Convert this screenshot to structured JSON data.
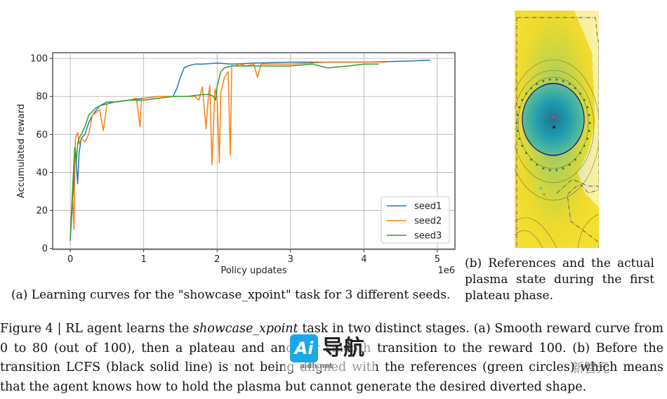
{
  "chart_data": {
    "type": "line",
    "xlabel": "Policy updates",
    "ylabel": "Accumulated reward",
    "x_multiplier_label": "1e6",
    "xlim": [
      -0.24,
      5.24
    ],
    "ylim": [
      -0.5,
      103
    ],
    "xticks": [
      0,
      1,
      2,
      3,
      4,
      5
    ],
    "yticks": [
      0,
      20,
      40,
      60,
      80,
      100
    ],
    "grid": true,
    "legend_position": "lower-right",
    "series": [
      {
        "name": "seed1",
        "color": "#1f77b4",
        "x": [
          0.0,
          0.04,
          0.07,
          0.1,
          0.12,
          0.15,
          0.2,
          0.25,
          0.3,
          0.4,
          0.5,
          0.6,
          0.8,
          1.0,
          1.2,
          1.4,
          1.45,
          1.5,
          1.55,
          1.6,
          1.7,
          1.8,
          2.0,
          2.2,
          2.5,
          3.0,
          3.5,
          4.0,
          4.5,
          4.9
        ],
        "y": [
          5,
          30,
          52,
          34,
          50,
          58,
          60,
          66,
          70,
          75,
          77,
          77,
          78,
          79,
          80,
          80,
          84,
          90,
          95,
          96,
          97,
          97,
          97.5,
          97,
          97.5,
          98,
          98,
          98,
          98.5,
          99
        ]
      },
      {
        "name": "seed2",
        "color": "#ff7f0e",
        "x": [
          0.0,
          0.03,
          0.05,
          0.07,
          0.1,
          0.12,
          0.15,
          0.2,
          0.25,
          0.3,
          0.4,
          0.45,
          0.5,
          0.6,
          0.8,
          0.9,
          0.95,
          0.97,
          1.0,
          1.2,
          1.4,
          1.6,
          1.7,
          1.75,
          1.8,
          1.85,
          1.88,
          1.9,
          1.93,
          1.97,
          2.0,
          2.03,
          2.05,
          2.1,
          2.15,
          2.18,
          2.2,
          2.23,
          2.25,
          2.3,
          2.4,
          2.5,
          2.55,
          2.6,
          2.7,
          3.0,
          3.5,
          4.0,
          4.3
        ],
        "y": [
          5,
          30,
          10,
          58,
          61,
          55,
          58,
          56,
          60,
          70,
          73,
          62,
          76,
          77,
          78,
          79,
          64,
          79,
          79,
          80,
          80,
          80,
          80,
          78,
          85,
          63,
          80,
          86,
          44,
          84,
          80,
          45,
          82,
          90,
          93,
          49,
          96,
          96,
          96,
          97,
          96,
          97,
          90,
          97,
          97,
          97,
          98,
          98,
          98
        ]
      },
      {
        "name": "seed3",
        "color": "#2ca02c",
        "x": [
          0.0,
          0.03,
          0.06,
          0.08,
          0.1,
          0.12,
          0.15,
          0.2,
          0.25,
          0.3,
          0.35,
          0.4,
          0.5,
          0.6,
          0.8,
          1.0,
          1.2,
          1.4,
          1.6,
          1.8,
          1.9,
          1.95,
          1.98,
          2.0,
          2.05,
          2.1,
          2.2,
          2.4,
          2.6,
          3.0,
          3.3,
          3.5,
          3.8,
          4.0,
          4.2
        ],
        "y": [
          4,
          30,
          53,
          45,
          55,
          58,
          60,
          64,
          70,
          72,
          74,
          75,
          76,
          77,
          78,
          78,
          79,
          80,
          80,
          81,
          81,
          80,
          78,
          85,
          93,
          95,
          96,
          96,
          96,
          96,
          97,
          95,
          96,
          97,
          97
        ]
      }
    ]
  },
  "captions": {
    "panel_a": "(a) Learning curves for the \"showcase_xpoint\" task for 3 different seeds.",
    "panel_b": "(b) References and the actual plasma state during the first plateau phase."
  },
  "figure_caption": {
    "label": "Figure 4 | RL agent learns the ",
    "task_name": "showcase_xpoint",
    "text": " task in two distinct stages. (a) Smooth reward curve from 0 to 80 (out of 100), then a plateau and another smooth transition to the reward 100. (b) Before the transition LCFS (black solid line) is not being aligned with the references (green circles) which means that the agent knows how to hold the plasma but cannot generate the desired diverted shape."
  },
  "watermark": {
    "logo": "Ai",
    "title": "导航",
    "subtitle": "aidh.net",
    "corner": "新智元"
  }
}
